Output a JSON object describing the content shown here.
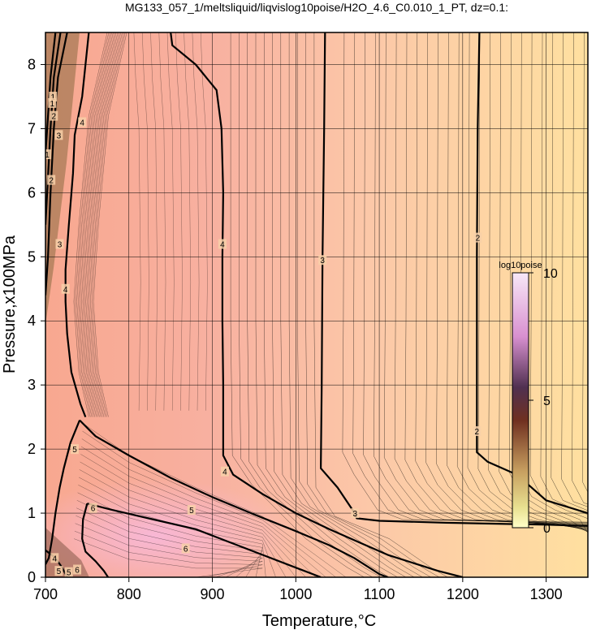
{
  "chart_data": {
    "type": "heatmap",
    "title": "MG133_057_1/meltsliquid/liqvislog10poise/H2O_4.6_C0.010_1_PT, dz=0.1:",
    "xlabel": "Temperature,°C",
    "ylabel": "Pressure,x100MPa",
    "xlim": [
      700,
      1350
    ],
    "ylim": [
      0,
      8.5
    ],
    "x_ticks": [
      "700",
      "800",
      "900",
      "1000",
      "1100",
      "1200",
      "1300"
    ],
    "y_ticks": [
      "0",
      "1",
      "2",
      "3",
      "4",
      "5",
      "6",
      "7",
      "8"
    ],
    "grid": true,
    "contour_interval": 0.1,
    "colorbar": {
      "title": "log10poise",
      "range": [
        0,
        10
      ],
      "tick_labels": [
        "0",
        "5",
        "10"
      ],
      "colors": [
        "#ffffc8",
        "#c8a060",
        "#703020",
        "#503050",
        "#d890d0",
        "#f8e8f8"
      ]
    },
    "background_colors": {
      "low": "#ffe0a0",
      "mid": "#f8b0a0",
      "high": "#f8b8d8"
    },
    "major_contours": [
      {
        "level": "2",
        "points": [
          [
            1220,
            8.5
          ],
          [
            1218,
            7.0
          ],
          [
            1217,
            5.0
          ],
          [
            1217,
            3.0
          ],
          [
            1217,
            1.95
          ],
          [
            1230,
            1.8
          ],
          [
            1265,
            1.6
          ],
          [
            1300,
            1.2
          ],
          [
            1350,
            1.0
          ]
        ]
      },
      {
        "level": "3",
        "points": [
          [
            1035,
            8.5
          ],
          [
            1034,
            7.0
          ],
          [
            1032,
            5.0
          ],
          [
            1031,
            3.0
          ],
          [
            1030,
            1.7
          ],
          [
            1050,
            1.4
          ],
          [
            1068,
            1.05
          ],
          [
            1073,
            0.92
          ],
          [
            1100,
            0.88
          ],
          [
            1180,
            0.85
          ],
          [
            1300,
            0.82
          ],
          [
            1350,
            0.8
          ]
        ]
      },
      {
        "level": "4",
        "points": [
          [
            850,
            8.5
          ],
          [
            852,
            8.3
          ],
          [
            880,
            8.0
          ],
          [
            905,
            7.6
          ],
          [
            911,
            7.0
          ],
          [
            913,
            6.0
          ],
          [
            912,
            5.0
          ],
          [
            912,
            4.0
          ],
          [
            913,
            3.0
          ],
          [
            913,
            1.9
          ],
          [
            925,
            1.6
          ],
          [
            960,
            1.3
          ],
          [
            1000,
            1.0
          ],
          [
            1040,
            0.75
          ],
          [
            1075,
            0.55
          ],
          [
            1110,
            0.35
          ],
          [
            1170,
            0.1
          ],
          [
            1200,
            0.0
          ]
        ]
      },
      {
        "level": "4",
        "points": [
          [
            752,
            8.5
          ],
          [
            744,
            7.5
          ],
          [
            735,
            6.9
          ],
          [
            733,
            6.3
          ],
          [
            728,
            5.5
          ],
          [
            724,
            4.8
          ],
          [
            724,
            4.3
          ],
          [
            726,
            3.8
          ],
          [
            731,
            3.2
          ],
          [
            742,
            2.7
          ],
          [
            748,
            2.5
          ]
        ]
      },
      {
        "level": "5",
        "points": [
          [
            741,
            2.45
          ],
          [
            760,
            2.2
          ],
          [
            800,
            1.9
          ],
          [
            850,
            1.55
          ],
          [
            900,
            1.25
          ],
          [
            950,
            0.98
          ],
          [
            1000,
            0.72
          ],
          [
            1040,
            0.5
          ],
          [
            1070,
            0.3
          ],
          [
            1100,
            0.05
          ],
          [
            1110,
            0.0
          ]
        ]
      },
      {
        "level": "5",
        "points": [
          [
            741,
            2.45
          ],
          [
            730,
            2.1
          ],
          [
            722,
            1.7
          ],
          [
            717,
            1.4
          ],
          [
            712,
            1.0
          ],
          [
            708,
            0.6
          ],
          [
            704,
            0.3
          ],
          [
            700,
            0.2
          ]
        ]
      },
      {
        "level": "6",
        "points": [
          [
            750,
            1.15
          ],
          [
            780,
            1.05
          ],
          [
            830,
            0.9
          ],
          [
            880,
            0.75
          ],
          [
            920,
            0.55
          ],
          [
            960,
            0.35
          ],
          [
            1000,
            0.15
          ],
          [
            1030,
            0.0
          ]
        ]
      },
      {
        "level": "6",
        "points": [
          [
            750,
            1.15
          ],
          [
            745,
            0.9
          ],
          [
            744,
            0.6
          ],
          [
            748,
            0.4
          ],
          [
            760,
            0.25
          ],
          [
            770,
            0.1
          ],
          [
            775,
            0.0
          ]
        ]
      },
      {
        "level": "4",
        "points": [
          [
            700,
            0.42
          ],
          [
            712,
            0.3
          ],
          [
            720,
            0.15
          ],
          [
            726,
            0.0
          ]
        ]
      },
      {
        "level": "3",
        "points": [
          [
            726,
            8.5
          ],
          [
            715,
            7.8
          ],
          [
            710,
            7.0
          ],
          [
            706,
            6.0
          ],
          [
            703,
            5.0
          ],
          [
            700,
            4.4
          ]
        ]
      },
      {
        "level": "2",
        "points": [
          [
            718,
            8.5
          ],
          [
            710,
            7.8
          ],
          [
            706,
            7.0
          ],
          [
            702,
            6.0
          ],
          [
            700,
            5.5
          ]
        ]
      },
      {
        "level": "1",
        "points": [
          [
            712,
            8.5
          ],
          [
            706,
            7.8
          ],
          [
            702,
            7.0
          ],
          [
            700,
            6.6
          ]
        ]
      }
    ],
    "contour_labels": [
      {
        "text": "2",
        "x": 1218,
        "y": 5.3
      },
      {
        "text": "2",
        "x": 1217,
        "y": 2.28
      },
      {
        "text": "3",
        "x": 1032,
        "y": 4.95
      },
      {
        "text": "3",
        "x": 1071,
        "y": 1.0
      },
      {
        "text": "4",
        "x": 912,
        "y": 5.2
      },
      {
        "text": "4",
        "x": 915,
        "y": 1.65
      },
      {
        "text": "4",
        "x": 744,
        "y": 7.1
      },
      {
        "text": "4",
        "x": 724,
        "y": 4.5
      },
      {
        "text": "3",
        "x": 717,
        "y": 5.2
      },
      {
        "text": "3",
        "x": 716,
        "y": 6.9
      },
      {
        "text": "2",
        "x": 710,
        "y": 7.2
      },
      {
        "text": "2",
        "x": 707,
        "y": 6.2
      },
      {
        "text": "1",
        "x": 709,
        "y": 7.5
      },
      {
        "text": "1",
        "x": 702,
        "y": 6.6
      },
      {
        "text": "1",
        "x": 708,
        "y": 7.4
      },
      {
        "text": "5",
        "x": 735,
        "y": 2.0
      },
      {
        "text": "5",
        "x": 875,
        "y": 1.05
      },
      {
        "text": "6",
        "x": 757,
        "y": 1.08
      },
      {
        "text": "6",
        "x": 868,
        "y": 0.45
      },
      {
        "text": "4",
        "x": 711,
        "y": 0.3
      },
      {
        "text": "5",
        "x": 716,
        "y": 0.1
      },
      {
        "text": "5",
        "x": 728,
        "y": 0.08
      },
      {
        "text": "6",
        "x": 738,
        "y": 0.12
      }
    ]
  }
}
